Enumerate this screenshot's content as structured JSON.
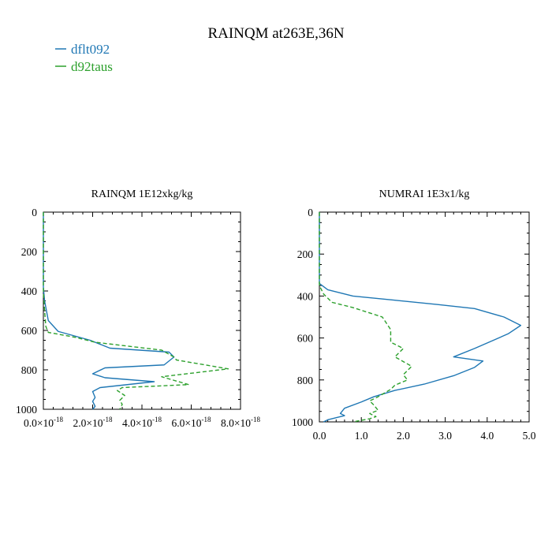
{
  "title": "RAINQM at263E,36N",
  "legend": [
    {
      "label": "dflt092",
      "color": "#1f77b4",
      "dash": "solid"
    },
    {
      "label": "d92taus",
      "color": "#2ca02c",
      "dash": "dashed"
    }
  ],
  "chart_data": [
    {
      "type": "line",
      "title": "RAINQM  1E12xkg/kg",
      "xlabel": "",
      "ylabel": "",
      "xlim": [
        0,
        8e-18
      ],
      "ylim": [
        1000,
        0
      ],
      "y_inverted": true,
      "grid": false,
      "x_ticks": [
        0,
        2e-18,
        4e-18,
        6e-18,
        8e-18
      ],
      "x_tick_labels": [
        {
          "m": "0.0",
          "e": "-18"
        },
        {
          "m": "2.0",
          "e": "-18"
        },
        {
          "m": "4.0",
          "e": "-18"
        },
        {
          "m": "6.0",
          "e": "-18"
        },
        {
          "m": "8.0",
          "e": "-18"
        }
      ],
      "y_ticks": [
        0,
        200,
        400,
        600,
        800,
        1000
      ],
      "y_tick_labels": [
        "0",
        "200",
        "400",
        "600",
        "800",
        "1000"
      ],
      "series": [
        {
          "name": "dflt092",
          "color": "#1f77b4",
          "dash": "solid",
          "points": [
            [
              0,
              0
            ],
            [
              0,
              100
            ],
            [
              0,
              300
            ],
            [
              0,
              380
            ],
            [
              5e-20,
              450
            ],
            [
              2e-19,
              550
            ],
            [
              6e-19,
              605
            ],
            [
              1.9e-18,
              650
            ],
            [
              2.7e-18,
              690
            ],
            [
              5.1e-18,
              710
            ],
            [
              5.3e-18,
              735
            ],
            [
              4.9e-18,
              775
            ],
            [
              2.5e-18,
              790
            ],
            [
              2e-18,
              820
            ],
            [
              2.5e-18,
              840
            ],
            [
              4.5e-18,
              860
            ],
            [
              2.3e-18,
              890
            ],
            [
              2e-18,
              910
            ],
            [
              2.1e-18,
              940
            ],
            [
              2e-18,
              960
            ],
            [
              2.1e-18,
              985
            ],
            [
              2e-18,
              1000
            ]
          ]
        },
        {
          "name": "d92taus",
          "color": "#2ca02c",
          "dash": "dashed",
          "points": [
            [
              0,
              0
            ],
            [
              0,
              100
            ],
            [
              0,
              300
            ],
            [
              0,
              400
            ],
            [
              5e-20,
              500
            ],
            [
              1e-19,
              580
            ],
            [
              2e-19,
              610
            ],
            [
              1.3e-18,
              635
            ],
            [
              2.1e-18,
              660
            ],
            [
              4.8e-18,
              700
            ],
            [
              5.3e-18,
              735
            ],
            [
              5.4e-18,
              750
            ],
            [
              7.5e-18,
              795
            ],
            [
              4.8e-18,
              835
            ],
            [
              5.9e-18,
              875
            ],
            [
              3.2e-18,
              890
            ],
            [
              3e-18,
              905
            ],
            [
              3.3e-18,
              930
            ],
            [
              3.1e-18,
              955
            ],
            [
              3.2e-18,
              975
            ],
            [
              3.1e-18,
              1000
            ]
          ]
        }
      ]
    },
    {
      "type": "line",
      "title": "NUMRAI  1E3x1/kg",
      "xlabel": "",
      "ylabel": "",
      "xlim": [
        0,
        5.0
      ],
      "ylim": [
        1000,
        0
      ],
      "y_inverted": true,
      "grid": false,
      "x_ticks": [
        0,
        1,
        2,
        3,
        4,
        5
      ],
      "x_tick_labels": [
        "0.0",
        "1.0",
        "2.0",
        "3.0",
        "4.0",
        "5.0"
      ],
      "y_ticks": [
        0,
        200,
        400,
        600,
        800,
        1000
      ],
      "y_tick_labels": [
        "0",
        "200",
        "400",
        "600",
        "800",
        "1000"
      ],
      "series": [
        {
          "name": "dflt092",
          "color": "#1f77b4",
          "dash": "solid",
          "points": [
            [
              0,
              0
            ],
            [
              0,
              200
            ],
            [
              0,
              340
            ],
            [
              0.2,
              370
            ],
            [
              0.8,
              400
            ],
            [
              1.8,
              420
            ],
            [
              2.8,
              440
            ],
            [
              3.7,
              460
            ],
            [
              4.4,
              500
            ],
            [
              4.8,
              540
            ],
            [
              4.5,
              580
            ],
            [
              4.1,
              615
            ],
            [
              3.7,
              650
            ],
            [
              3.2,
              690
            ],
            [
              3.9,
              710
            ],
            [
              3.7,
              740
            ],
            [
              3.2,
              780
            ],
            [
              2.5,
              820
            ],
            [
              1.8,
              850
            ],
            [
              1.3,
              880
            ],
            [
              1.0,
              905
            ],
            [
              0.6,
              935
            ],
            [
              0.5,
              960
            ],
            [
              0.6,
              970
            ],
            [
              0.2,
              990
            ],
            [
              0.1,
              1000
            ]
          ]
        },
        {
          "name": "d92taus",
          "color": "#2ca02c",
          "dash": "dashed",
          "points": [
            [
              0,
              0
            ],
            [
              0,
              250
            ],
            [
              0,
              350
            ],
            [
              0.1,
              390
            ],
            [
              0.3,
              430
            ],
            [
              0.8,
              455
            ],
            [
              1.5,
              500
            ],
            [
              1.7,
              560
            ],
            [
              1.7,
              620
            ],
            [
              2.0,
              650
            ],
            [
              1.8,
              690
            ],
            [
              2.2,
              735
            ],
            [
              2.0,
              775
            ],
            [
              2.1,
              800
            ],
            [
              1.8,
              825
            ],
            [
              1.7,
              845
            ],
            [
              1.4,
              880
            ],
            [
              1.2,
              900
            ],
            [
              1.3,
              920
            ],
            [
              1.4,
              945
            ],
            [
              1.2,
              960
            ],
            [
              1.35,
              975
            ],
            [
              1.2,
              985
            ],
            [
              0.8,
              1000
            ]
          ]
        }
      ]
    }
  ]
}
